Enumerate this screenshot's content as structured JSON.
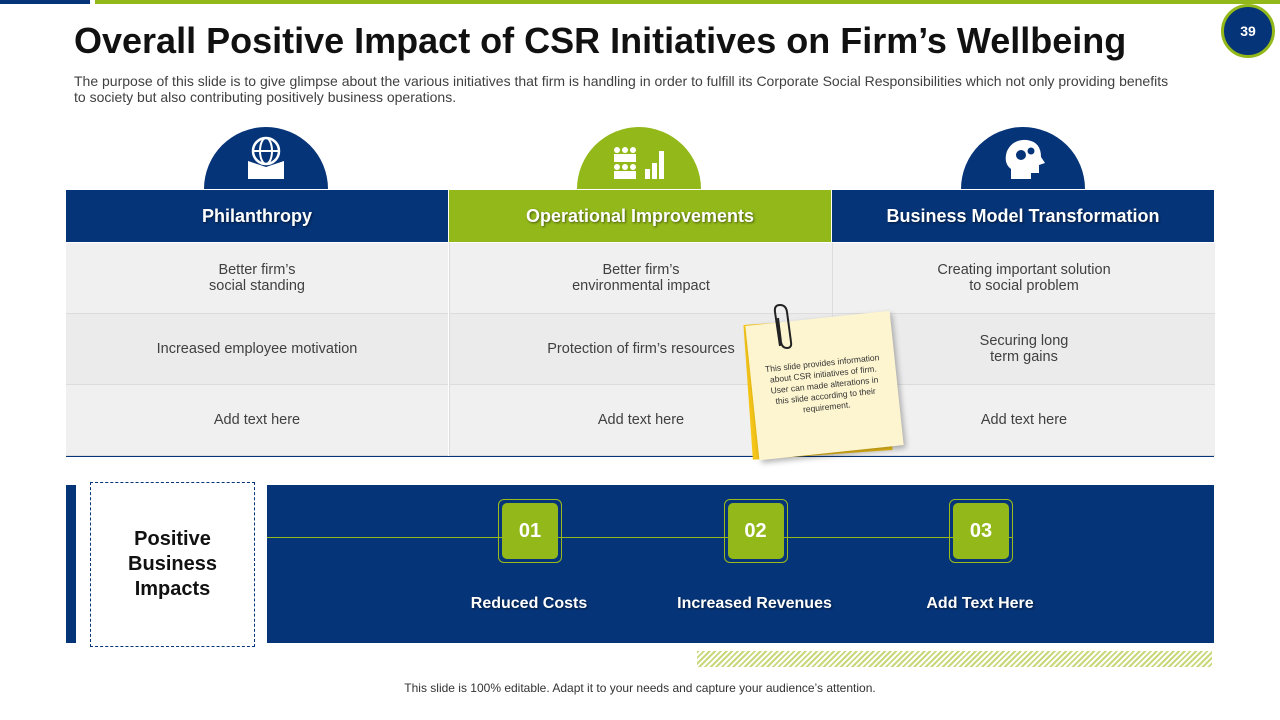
{
  "page_number": "39",
  "title": "Overall Positive Impact of CSR Initiatives on Firm’s Wellbeing",
  "subtitle": "The purpose of this slide is to give glimpse about the various initiatives that firm is handling in order to fulfill its Corporate Social Responsibilities which  not only providing benefits to society but also contributing positively business operations.",
  "table": {
    "columns": [
      {
        "header": "Philanthropy",
        "rows": [
          "Better firm’s\nsocial standing",
          "Increased employee motivation",
          "Add text here"
        ]
      },
      {
        "header": "Operational Improvements",
        "rows": [
          "Better firm’s\nenvironmental impact",
          "Protection of firm’s resources",
          "Add text here"
        ]
      },
      {
        "header": "Business Model Transformation",
        "rows": [
          "Creating important solution\nto social problem",
          "Securing long\nterm gains",
          "Add text here"
        ]
      }
    ]
  },
  "sticky_note": "This slide provides information about  CSR initiatives of firm. User can made alterations in this slide according to their requirement.",
  "impacts": {
    "label": "Positive\nBusiness\nImpacts",
    "items": [
      {
        "number": "01",
        "label": "Reduced Costs"
      },
      {
        "number": "02",
        "label": "Increased Revenues"
      },
      {
        "number": "03",
        "label": "Add Text Here"
      }
    ]
  },
  "footer": "This slide is 100% editable. Adapt it to your needs and capture your audience’s attention."
}
